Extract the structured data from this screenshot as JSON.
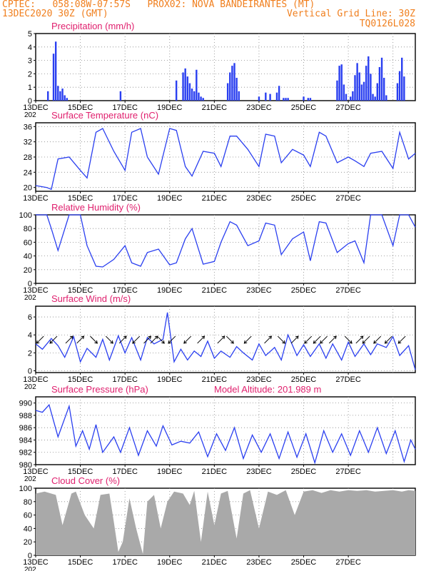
{
  "header": {
    "line1_left": "CPTEC:   058:08W-07:57S   PROX02: NOVA BANDEIRANTES (MT)",
    "line2_left": "13DEC2020 30Z (GMT)",
    "line2_right": "Vertical Grid Line: 30Z",
    "line3_right": "TQ0126L028"
  },
  "colors": {
    "header_text": "#f07f1e",
    "panel_title": "#e0206e",
    "series_line": "#2a3ff0",
    "cloud_fill": "#a9a9a9",
    "grid": "#888888"
  },
  "chart_data": [
    {
      "name": "precipitation",
      "type": "bar",
      "title": "Precipitation (mm/h)",
      "x_labels": [
        "13DEC",
        "15DEC",
        "17DEC",
        "19DEC",
        "21DEC",
        "23DEC",
        "25DEC",
        "27DEC"
      ],
      "x_sublabel": "202",
      "ylim": [
        0,
        5
      ],
      "yticks": [
        0,
        1,
        2,
        3,
        4,
        5
      ],
      "x": [
        0.55,
        0.8,
        0.9,
        1.0,
        1.1,
        1.2,
        1.3,
        1.4,
        3.8,
        6.3,
        6.6,
        6.7,
        6.8,
        6.9,
        7.0,
        7.1,
        7.2,
        7.3,
        7.4,
        7.5,
        8.6,
        8.7,
        8.8,
        8.9,
        9.0,
        9.1,
        10.0,
        10.3,
        10.5,
        10.8,
        10.9,
        11.1,
        11.2,
        11.3,
        12.0,
        12.2,
        12.3,
        13.5,
        13.6,
        13.7,
        13.8,
        13.9,
        14.1,
        14.2,
        14.3,
        14.4,
        14.5,
        14.6,
        14.7,
        14.8,
        14.9,
        15.0,
        15.1,
        15.2,
        15.3,
        15.4,
        15.5,
        15.6,
        15.7,
        16.2,
        16.3,
        16.4,
        16.5
      ],
      "values": [
        0.7,
        3.5,
        4.4,
        1.1,
        0.7,
        0.9,
        0.4,
        0.2,
        0.7,
        1.5,
        2.1,
        2.4,
        1.8,
        1.3,
        0.9,
        0.7,
        2.3,
        0.6,
        0.3,
        0.2,
        1.3,
        2.1,
        2.6,
        2.8,
        1.7,
        0.7,
        0.3,
        0.6,
        0.5,
        0.6,
        1.1,
        0.2,
        0.2,
        0.2,
        0.3,
        0.2,
        0.2,
        1.5,
        2.6,
        2.7,
        1.2,
        0.5,
        0.3,
        0.7,
        1.9,
        2.8,
        2.1,
        1.2,
        1.4,
        2.6,
        3.3,
        2.0,
        0.5,
        0.3,
        1.3,
        2.5,
        3.2,
        1.7,
        0.4,
        1.3,
        2.2,
        3.2,
        1.8
      ]
    },
    {
      "name": "temperature",
      "type": "line",
      "title": "Surface Temperature (nC)",
      "x_labels": [
        "13DEC",
        "15DEC",
        "17DEC",
        "19DEC",
        "21DEC",
        "23DEC",
        "25DEC",
        "27DEC"
      ],
      "ylim": [
        19,
        37
      ],
      "yticks": [
        20,
        24,
        28,
        32,
        36
      ],
      "x": [
        0,
        0.5,
        0.7,
        1.0,
        1.5,
        2.0,
        2.3,
        2.7,
        3.0,
        3.5,
        4.0,
        4.3,
        4.7,
        5.0,
        5.5,
        6.0,
        6.3,
        6.7,
        7.0,
        7.5,
        8.0,
        8.3,
        8.7,
        9.0,
        9.5,
        10.0,
        10.3,
        10.7,
        11.0,
        11.5,
        12.0,
        12.3,
        12.7,
        13.0,
        13.5,
        14.0,
        14.3,
        14.7,
        15.0,
        15.5,
        16.0,
        16.3,
        16.7,
        17.0
      ],
      "values": [
        20.5,
        20.0,
        19.5,
        27.5,
        28.0,
        24.5,
        22.5,
        34.5,
        35.5,
        29.5,
        24.5,
        34.5,
        35.5,
        28.0,
        23.5,
        35.5,
        35.0,
        25.5,
        23.0,
        29.5,
        29.0,
        25.5,
        33.5,
        33.5,
        30.0,
        25.5,
        34.0,
        33.5,
        26.5,
        30.0,
        28.5,
        25.5,
        34.5,
        33.5,
        26.5,
        28.0,
        27.0,
        25.5,
        29.0,
        29.5,
        25.0,
        34.5,
        27.5,
        29.0
      ]
    },
    {
      "name": "humidity",
      "type": "line",
      "title": "Relative Humidity (%)",
      "x_labels": [
        "13DEC",
        "15DEC",
        "17DEC",
        "19DEC",
        "21DEC",
        "23DEC",
        "25DEC",
        "27DEC"
      ],
      "x_sublabel": "202",
      "ylim": [
        0,
        100
      ],
      "yticks": [
        0,
        20,
        40,
        60,
        80,
        100
      ],
      "x": [
        0,
        0.5,
        0.7,
        1.0,
        1.5,
        2.0,
        2.3,
        2.7,
        3.0,
        3.5,
        4.0,
        4.3,
        4.7,
        5.0,
        5.5,
        6.0,
        6.3,
        6.7,
        7.0,
        7.5,
        8.0,
        8.3,
        8.7,
        9.0,
        9.5,
        10.0,
        10.3,
        10.7,
        11.0,
        11.5,
        12.0,
        12.3,
        12.7,
        13.0,
        13.5,
        14.0,
        14.3,
        14.7,
        15.0,
        15.5,
        16.0,
        16.3,
        16.7,
        17.0
      ],
      "values": [
        100,
        100,
        80,
        48,
        100,
        100,
        55,
        25,
        24,
        35,
        55,
        30,
        25,
        45,
        50,
        27,
        30,
        65,
        80,
        28,
        32,
        60,
        90,
        85,
        55,
        62,
        88,
        85,
        42,
        65,
        75,
        33,
        90,
        88,
        45,
        58,
        62,
        30,
        100,
        100,
        55,
        100,
        100,
        82
      ]
    },
    {
      "name": "wind",
      "type": "line",
      "title": "Surface Wind (m/s)",
      "x_labels": [
        "13DEC",
        "15DEC",
        "17DEC",
        "19DEC",
        "21DEC",
        "23DEC",
        "25DEC",
        "27DEC"
      ],
      "x_sublabel": "202",
      "ylim": [
        -0.2,
        7.2
      ],
      "yticks": [
        0,
        2,
        4,
        6
      ],
      "x": [
        0,
        0.3,
        0.7,
        1.0,
        1.3,
        1.7,
        2.0,
        2.3,
        2.7,
        3.0,
        3.3,
        3.7,
        4.0,
        4.3,
        4.7,
        5.0,
        5.3,
        5.7,
        5.9,
        6.2,
        6.5,
        6.8,
        7.1,
        7.4,
        7.7,
        8.0,
        8.3,
        8.7,
        9.0,
        9.3,
        9.7,
        10.0,
        10.3,
        10.7,
        11.0,
        11.3,
        11.7,
        12.0,
        12.3,
        12.7,
        13.0,
        13.3,
        13.7,
        14.0,
        14.3,
        14.7,
        15.0,
        15.3,
        15.7,
        16.0,
        16.3,
        16.7,
        17.0
      ],
      "values": [
        3.0,
        2.4,
        3.6,
        2.8,
        1.5,
        3.8,
        1.0,
        2.5,
        1.5,
        3.5,
        1.2,
        3.9,
        2.0,
        3.7,
        1.2,
        3.7,
        3.0,
        3.5,
        6.5,
        1.0,
        2.4,
        1.2,
        2.2,
        1.6,
        3.3,
        1.4,
        2.2,
        1.5,
        2.7,
        2.0,
        1.2,
        3.0,
        1.7,
        2.6,
        1.2,
        4.0,
        1.7,
        2.9,
        1.6,
        3.0,
        1.4,
        3.0,
        1.2,
        3.2,
        1.6,
        3.0,
        1.8,
        3.0,
        2.6,
        3.8,
        1.7,
        2.8,
        0.1
      ],
      "arrow_x": [
        0.2,
        0.8,
        1.5,
        2.0,
        2.6,
        3.3,
        3.9,
        4.5,
        5.0,
        5.3,
        5.6,
        6.1,
        6.8,
        7.4,
        8.3,
        8.7,
        9.5,
        10.4,
        11.0,
        11.6,
        12.2,
        12.6,
        12.9,
        13.3,
        14.0,
        14.5,
        14.8,
        15.3,
        15.8,
        16.4
      ],
      "arrow_angle": [
        225,
        225,
        45,
        45,
        315,
        315,
        45,
        225,
        45,
        45,
        315,
        225,
        225,
        45,
        45,
        315,
        225,
        45,
        315,
        45,
        225,
        225,
        225,
        45,
        315,
        45,
        225,
        225,
        225,
        225
      ]
    },
    {
      "name": "pressure",
      "type": "line",
      "title": "Surface Pressure (hPa)",
      "subtitle": "Model Altitude: 201.989 m",
      "x_labels": [
        "13DEC",
        "15DEC",
        "17DEC",
        "19DEC",
        "21DEC",
        "23DEC",
        "25DEC",
        "27DEC"
      ],
      "x_sublabel": "202",
      "ylim": [
        980,
        991
      ],
      "yticks": [
        980,
        982,
        984,
        986,
        988,
        990
      ],
      "x": [
        0,
        0.3,
        0.6,
        1.0,
        1.5,
        1.8,
        2.1,
        2.4,
        2.7,
        3.0,
        3.5,
        3.8,
        4.2,
        4.6,
        5.0,
        5.4,
        5.7,
        6.1,
        6.5,
        6.9,
        7.3,
        7.7,
        8.1,
        8.5,
        8.9,
        9.3,
        9.7,
        10.1,
        10.5,
        10.9,
        11.3,
        11.7,
        12.1,
        12.5,
        12.9,
        13.3,
        13.7,
        14.1,
        14.5,
        14.9,
        15.3,
        15.7,
        16.1,
        16.5,
        16.8,
        17.0
      ],
      "values": [
        988.8,
        988.5,
        989.7,
        984.5,
        989.5,
        983.0,
        985.5,
        982.5,
        986.5,
        982.0,
        984.5,
        982.0,
        986.0,
        981.5,
        985.5,
        983.0,
        986.3,
        983.2,
        983.8,
        983.5,
        985.3,
        981.3,
        985.0,
        982.3,
        986.0,
        981.0,
        984.8,
        982.0,
        985.0,
        981.0,
        985.3,
        981.2,
        985.0,
        980.3,
        985.5,
        982.0,
        985.0,
        981.5,
        985.5,
        982.0,
        986.0,
        981.8,
        985.5,
        980.5,
        984.0,
        982.5
      ]
    },
    {
      "name": "cloud",
      "type": "area",
      "title": "Cloud Cover (%)",
      "x_labels": [
        "13DEC",
        "15DEC",
        "17DEC",
        "19DEC",
        "21DEC",
        "23DEC",
        "25DEC",
        "27DEC"
      ],
      "x_sublabel": "202",
      "ylim": [
        0,
        100
      ],
      "yticks": [
        0,
        20,
        40,
        60,
        80,
        100
      ],
      "x": [
        0,
        0.4,
        0.9,
        1.2,
        1.6,
        1.8,
        2.2,
        2.6,
        2.9,
        3.3,
        3.5,
        3.7,
        3.9,
        4.2,
        4.5,
        4.8,
        5.0,
        5.3,
        5.6,
        5.9,
        6.2,
        6.6,
        6.9,
        7.1,
        7.4,
        7.7,
        8.0,
        8.3,
        8.6,
        9.0,
        9.3,
        9.6,
        10.0,
        10.4,
        10.8,
        11.2,
        11.6,
        12.0,
        12.4,
        12.8,
        13.2,
        13.6,
        14.0,
        14.4,
        14.8,
        15.2,
        15.6,
        16.0,
        16.4,
        16.7,
        17.0
      ],
      "values": [
        92,
        95,
        90,
        45,
        92,
        95,
        60,
        40,
        90,
        92,
        50,
        5,
        20,
        85,
        40,
        2,
        80,
        90,
        40,
        80,
        95,
        92,
        75,
        96,
        20,
        95,
        45,
        92,
        96,
        25,
        92,
        97,
        40,
        95,
        90,
        97,
        60,
        95,
        97,
        93,
        97,
        95,
        97,
        96,
        97,
        95,
        96,
        97,
        95,
        97,
        96
      ]
    }
  ]
}
